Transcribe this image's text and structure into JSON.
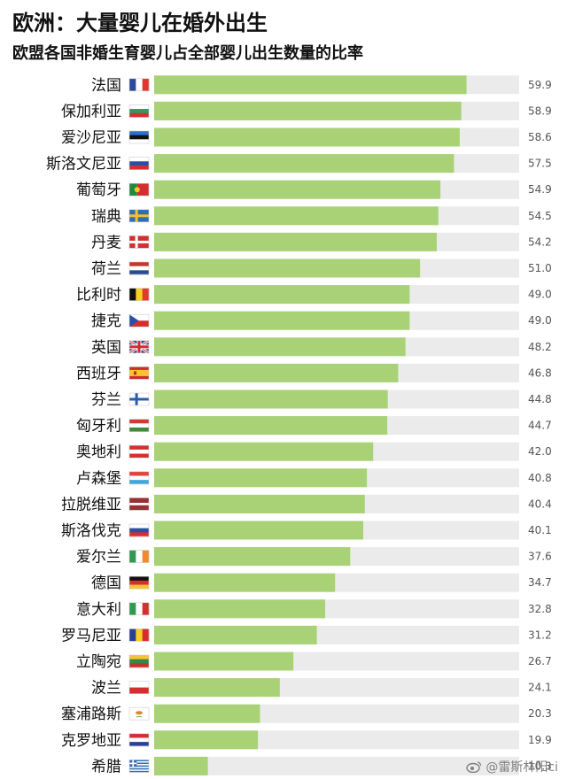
{
  "title": "欧洲：大量婴儿在婚外出生",
  "subtitle": "欧盟各国非婚生育婴儿占全部婴儿出生数量的比率",
  "watermark": "@雷斯林阳ci",
  "colors": {
    "bar": "#a9d276",
    "track": "#ebebeb",
    "text": "#111111",
    "value_text": "#555555"
  },
  "chart_data": {
    "type": "bar",
    "orientation": "horizontal",
    "title": "欧洲：大量婴儿在婚外出生",
    "subtitle": "欧盟各国非婚生育婴儿占全部婴儿出生数量的比率",
    "xlim": [
      0,
      100
    ],
    "categories": [
      "法国",
      "保加利亚",
      "爱沙尼亚",
      "斯洛文尼亚",
      "葡萄牙",
      "瑞典",
      "丹麦",
      "荷兰",
      "比利时",
      "捷克",
      "英国",
      "西班牙",
      "芬兰",
      "匈牙利",
      "奥地利",
      "卢森堡",
      "拉脱维亚",
      "斯洛伐克",
      "爱尔兰",
      "德国",
      "意大利",
      "罗马尼亚",
      "立陶宛",
      "波兰",
      "塞浦路斯",
      "克罗地亚",
      "希腊"
    ],
    "values": [
      59.9,
      58.9,
      58.6,
      57.5,
      54.9,
      54.5,
      54.2,
      51.0,
      49.0,
      49.0,
      48.2,
      46.8,
      44.8,
      44.7,
      42.0,
      40.8,
      40.4,
      40.1,
      37.6,
      34.7,
      32.8,
      31.2,
      26.7,
      24.1,
      20.3,
      19.9,
      10.3
    ],
    "value_labels": [
      "59.9",
      "58.9",
      "58.6",
      "57.5",
      "54.9",
      "54.5",
      "54.2",
      "51.0",
      "49.0",
      "49.0",
      "48.2",
      "46.8",
      "44.8",
      "44.7",
      "42.0",
      "40.8",
      "40.4",
      "40.1",
      "37.6",
      "34.7",
      "32.8",
      "31.2",
      "26.7",
      "24.1",
      "20.3",
      "19.9",
      "10.3"
    ],
    "flags": [
      "france-flag-icon",
      "bulgaria-flag-icon",
      "estonia-flag-icon",
      "slovenia-flag-icon",
      "portugal-flag-icon",
      "sweden-flag-icon",
      "denmark-flag-icon",
      "netherlands-flag-icon",
      "belgium-flag-icon",
      "czechia-flag-icon",
      "uk-flag-icon",
      "spain-flag-icon",
      "finland-flag-icon",
      "hungary-flag-icon",
      "austria-flag-icon",
      "luxembourg-flag-icon",
      "latvia-flag-icon",
      "slovakia-flag-icon",
      "ireland-flag-icon",
      "germany-flag-icon",
      "italy-flag-icon",
      "romania-flag-icon",
      "lithuania-flag-icon",
      "poland-flag-icon",
      "cyprus-flag-icon",
      "croatia-flag-icon",
      "greece-flag-icon"
    ],
    "grid": false,
    "legend": "none"
  }
}
